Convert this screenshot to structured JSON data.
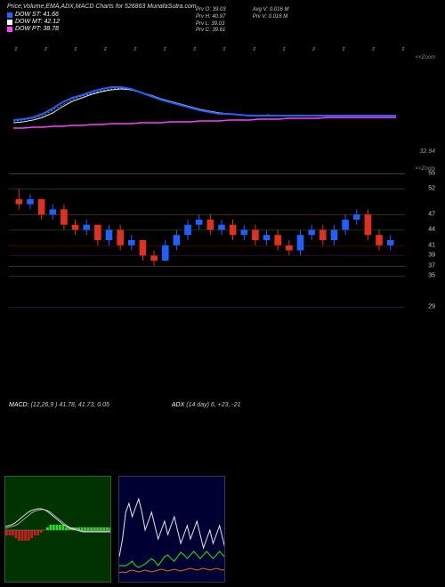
{
  "title": "Price,Volume,EMA,ADX,MACD Charts for 526863 MunafaSutra.com",
  "legend": [
    {
      "label": "DOW ST: 41.66",
      "color": "#2268ff"
    },
    {
      "label": "DOW MT: 42.12",
      "color": "#ffffff"
    },
    {
      "label": "DOW PT: 38.78",
      "color": "#ff40ff"
    }
  ],
  "info_left": [
    "Prv O: 39.03",
    "Prv H: 40.97",
    "Prv L: 39.03",
    "Prv C: 39.61"
  ],
  "info_right": [
    "Avg V: 0.016  M",
    "Prv V: 0.016  M"
  ],
  "top_markers": [
    "⇕",
    "⇕",
    "⇕",
    "⇕",
    "⇕",
    "⇕",
    "⇕",
    "⇕",
    "⇕",
    "⇕",
    "⇕",
    "⇕",
    "⇕",
    "⇕"
  ],
  "ema_panel": {
    "zoom_label": "<<Zoom",
    "right_price": "32.94",
    "bg": "#000000",
    "series": {
      "blue": {
        "color": "#2060ff",
        "width": 2.0,
        "pts": [
          65,
          64,
          62,
          58,
          52,
          45,
          40,
          37,
          33,
          30,
          28,
          28,
          30,
          34,
          38,
          42,
          45,
          48,
          51,
          54,
          56,
          58,
          58,
          59,
          60,
          60,
          60,
          60,
          60,
          60,
          60,
          60,
          60,
          60,
          60,
          60,
          60,
          60,
          60,
          60
        ]
      },
      "white": {
        "color": "#e8e8e8",
        "width": 1.0,
        "pts": [
          68,
          67,
          65,
          62,
          57,
          50,
          44,
          40,
          36,
          33,
          31,
          30,
          31,
          34,
          37,
          41,
          44,
          47,
          50,
          53,
          55,
          57,
          58,
          59,
          60,
          60,
          60,
          60,
          60,
          60,
          60,
          60,
          60,
          60,
          60,
          60,
          60,
          60,
          60,
          60
        ]
      },
      "pink": {
        "color": "#ff40ff",
        "width": 1.4,
        "pts": [
          74,
          74,
          73,
          73,
          72,
          72,
          71,
          71,
          70,
          70,
          69,
          69,
          69,
          68,
          68,
          68,
          67,
          67,
          67,
          66,
          66,
          66,
          65,
          65,
          65,
          64,
          64,
          64,
          63,
          63,
          63,
          63,
          62,
          62,
          62,
          62,
          62,
          62,
          62,
          62
        ]
      },
      "dashed": {
        "color": "#a0a0d0",
        "width": 0.8,
        "dash": "2,2",
        "pts": [
          66,
          65,
          63,
          60,
          54,
          48,
          42,
          38,
          35,
          32,
          30,
          29,
          31,
          34,
          38,
          42,
          45,
          48,
          50,
          53,
          56,
          57,
          58,
          59,
          60,
          60,
          59,
          60,
          60,
          60,
          60,
          60,
          60,
          60,
          60,
          60,
          60,
          60,
          60,
          60
        ]
      }
    }
  },
  "candle_panel": {
    "zoom_label": "<<Zoom",
    "ylim": [
      29,
      55
    ],
    "yticks": [
      55,
      52,
      47,
      44,
      41,
      39,
      37,
      35,
      29
    ],
    "grid_colors": {
      "55": "#404000",
      "52": "#003838",
      "47": "#402800",
      "44": "#003800",
      "41": "#400000",
      "39": "#300030",
      "37": "#383800",
      "35": "#283000",
      "29": "#102030"
    },
    "candles": [
      {
        "o": 50,
        "h": 52,
        "l": 48,
        "c": 49,
        "col": "r"
      },
      {
        "o": 49,
        "h": 51,
        "l": 48,
        "c": 50,
        "col": "b"
      },
      {
        "o": 50,
        "h": 50,
        "l": 46,
        "c": 47,
        "col": "r"
      },
      {
        "o": 47,
        "h": 49,
        "l": 46,
        "c": 48,
        "col": "b"
      },
      {
        "o": 48,
        "h": 49,
        "l": 44,
        "c": 45,
        "col": "r"
      },
      {
        "o": 45,
        "h": 46,
        "l": 43,
        "c": 44,
        "col": "r"
      },
      {
        "o": 44,
        "h": 46,
        "l": 43,
        "c": 45,
        "col": "b"
      },
      {
        "o": 45,
        "h": 45,
        "l": 41,
        "c": 42,
        "col": "r"
      },
      {
        "o": 42,
        "h": 45,
        "l": 41,
        "c": 44,
        "col": "b"
      },
      {
        "o": 44,
        "h": 45,
        "l": 40,
        "c": 41,
        "col": "r"
      },
      {
        "o": 41,
        "h": 43,
        "l": 40,
        "c": 42,
        "col": "b"
      },
      {
        "o": 42,
        "h": 42,
        "l": 38,
        "c": 39,
        "col": "r"
      },
      {
        "o": 39,
        "h": 40,
        "l": 37,
        "c": 38,
        "col": "r"
      },
      {
        "o": 38,
        "h": 42,
        "l": 38,
        "c": 41,
        "col": "b"
      },
      {
        "o": 41,
        "h": 44,
        "l": 40,
        "c": 43,
        "col": "b"
      },
      {
        "o": 43,
        "h": 46,
        "l": 42,
        "c": 45,
        "col": "b"
      },
      {
        "o": 45,
        "h": 47,
        "l": 44,
        "c": 46,
        "col": "b"
      },
      {
        "o": 46,
        "h": 47,
        "l": 43,
        "c": 44,
        "col": "r"
      },
      {
        "o": 44,
        "h": 46,
        "l": 43,
        "c": 45,
        "col": "b"
      },
      {
        "o": 45,
        "h": 46,
        "l": 42,
        "c": 43,
        "col": "r"
      },
      {
        "o": 43,
        "h": 45,
        "l": 42,
        "c": 44,
        "col": "b"
      },
      {
        "o": 44,
        "h": 45,
        "l": 41,
        "c": 42,
        "col": "r"
      },
      {
        "o": 42,
        "h": 44,
        "l": 41,
        "c": 43,
        "col": "b"
      },
      {
        "o": 43,
        "h": 44,
        "l": 40,
        "c": 41,
        "col": "r"
      },
      {
        "o": 41,
        "h": 42,
        "l": 39,
        "c": 40,
        "col": "r"
      },
      {
        "o": 40,
        "h": 44,
        "l": 39,
        "c": 43,
        "col": "b"
      },
      {
        "o": 43,
        "h": 45,
        "l": 42,
        "c": 44,
        "col": "b"
      },
      {
        "o": 44,
        "h": 45,
        "l": 41,
        "c": 42,
        "col": "r"
      },
      {
        "o": 42,
        "h": 45,
        "l": 41,
        "c": 44,
        "col": "b"
      },
      {
        "o": 44,
        "h": 47,
        "l": 43,
        "c": 46,
        "col": "b"
      },
      {
        "o": 46,
        "h": 48,
        "l": 45,
        "c": 47,
        "col": "b"
      },
      {
        "o": 47,
        "h": 48,
        "l": 42,
        "c": 43,
        "col": "r"
      },
      {
        "o": 43,
        "h": 44,
        "l": 40,
        "c": 41,
        "col": "r"
      },
      {
        "o": 41,
        "h": 43,
        "l": 40,
        "c": 42,
        "col": "b"
      }
    ],
    "up_color": "#2060ff",
    "down_color": "#e03020"
  },
  "macd_row": {
    "macd_label": "MACD:",
    "macd_params": "(12,26,9 ) 41.78, 41.73, 0.05",
    "adx_label": "ADX",
    "adx_params": "(14 day) 6, +23, -21"
  },
  "macd_panel": {
    "bg": "#003300",
    "line1_color": "#e0e0e0",
    "line2_color": "#c8c8c8",
    "hist_pos": "#20e020",
    "hist_neg": "#c02020",
    "line1": [
      56,
      55,
      54,
      52,
      49,
      46,
      43,
      40,
      38,
      37,
      36,
      36,
      37,
      39,
      42,
      45,
      48,
      51,
      54,
      56,
      58,
      59,
      60,
      61,
      62,
      62,
      62,
      62,
      62,
      62,
      62,
      62,
      62,
      62
    ],
    "line2": [
      58,
      57,
      56,
      55,
      53,
      50,
      47,
      44,
      41,
      39,
      38,
      37,
      37,
      38,
      40,
      43,
      46,
      49,
      52,
      55,
      57,
      58,
      59,
      60,
      61,
      61,
      61,
      61,
      61,
      61,
      61,
      61,
      61,
      61
    ],
    "hist": [
      -2,
      -2,
      -2,
      -3,
      -4,
      -4,
      -4,
      -4,
      -3,
      -2,
      -2,
      -1,
      0,
      1,
      2,
      2,
      2,
      2,
      2,
      1,
      1,
      1,
      1,
      1,
      1,
      1,
      1,
      1,
      1,
      1,
      1,
      1,
      1,
      1
    ]
  },
  "adx_panel": {
    "bg": "#000033",
    "white_color": "#e8e8e8",
    "green_color": "#10d010",
    "orange_color": "#d07010",
    "white": [
      90,
      70,
      40,
      30,
      45,
      35,
      25,
      40,
      60,
      50,
      40,
      55,
      70,
      60,
      50,
      65,
      55,
      45,
      60,
      75,
      65,
      55,
      70,
      60,
      50,
      65,
      80,
      70,
      60,
      75,
      65,
      55,
      70,
      85
    ],
    "green": [
      100,
      100,
      100,
      98,
      95,
      100,
      102,
      100,
      98,
      95,
      92,
      95,
      100,
      95,
      90,
      88,
      92,
      95,
      90,
      85,
      88,
      92,
      88,
      84,
      88,
      92,
      88,
      84,
      88,
      92,
      88,
      84,
      88,
      92
    ],
    "orange": [
      108,
      107,
      108,
      106,
      105,
      106,
      107,
      106,
      105,
      106,
      107,
      106,
      105,
      104,
      105,
      106,
      105,
      104,
      105,
      106,
      105,
      104,
      103,
      104,
      105,
      104,
      103,
      104,
      105,
      104,
      103,
      104,
      105,
      104
    ]
  }
}
